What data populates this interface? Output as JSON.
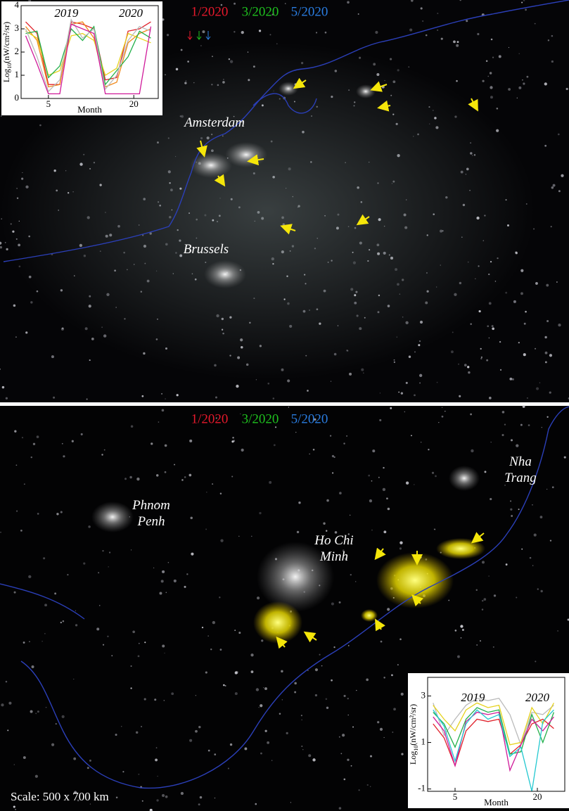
{
  "panels": [
    {
      "legend": [
        {
          "label": "1/2020",
          "color": "#e8192c"
        },
        {
          "label": "3/2020",
          "color": "#1fc21f"
        },
        {
          "label": "5/2020",
          "color": "#2a7de1"
        }
      ],
      "cities": [
        [
          "Amsterdam"
        ],
        [
          "Brussels"
        ]
      ],
      "inset": {
        "type": "line",
        "labels": [
          "2019",
          "2020"
        ],
        "ylabel": [
          "Log",
          "10",
          "(nW/cm²/sr)"
        ],
        "xlabel": "Month",
        "x": [
          1,
          3,
          5,
          7,
          9,
          11,
          13,
          15,
          17,
          19,
          21,
          23
        ],
        "xlim": [
          0.2,
          24.3
        ],
        "ylim": [
          0,
          4
        ],
        "xticks": [
          5,
          20
        ],
        "yticks": [
          0,
          1,
          2,
          3,
          4
        ],
        "series": [
          {
            "color": "#e0202a",
            "values": [
              3.3,
              2.8,
              0.6,
              0.6,
              3.3,
              3.2,
              3.0,
              0.8,
              0.9,
              2.9,
              3.0,
              3.3
            ]
          },
          {
            "color": "#f08a1c",
            "values": [
              3.1,
              2.5,
              0.5,
              0.6,
              3.2,
              3.3,
              2.6,
              0.5,
              0.7,
              2.4,
              2.8,
              3.0
            ]
          },
          {
            "color": "#e6d21c",
            "values": [
              2.9,
              2.6,
              1.0,
              1.2,
              2.7,
              2.8,
              2.5,
              1.0,
              1.3,
              2.8,
              2.6,
              2.4
            ]
          },
          {
            "color": "#22b04a",
            "values": [
              2.8,
              2.9,
              0.9,
              1.4,
              3.0,
              2.5,
              3.1,
              0.6,
              1.2,
              1.8,
              2.9,
              2.6
            ]
          },
          {
            "color": "#bbbbbb",
            "values": [
              3.0,
              1.8,
              0.3,
              0.8,
              3.4,
              2.6,
              3.0,
              0.4,
              1.0,
              2.5,
              3.1,
              2.9
            ]
          },
          {
            "color": "#d01a9a",
            "values": [
              2.7,
              1.5,
              0.2,
              0.2,
              3.2,
              3.0,
              2.8,
              0.2,
              0.2,
              0.2,
              0.2,
              3.1
            ]
          }
        ]
      }
    },
    {
      "legend": [
        {
          "label": "1/2020",
          "color": "#e8192c"
        },
        {
          "label": "3/2020",
          "color": "#1fc21f"
        },
        {
          "label": "5/2020",
          "color": "#2a7de1"
        }
      ],
      "cities": [
        [
          "Phnom",
          "Penh"
        ],
        [
          "Ho Chi",
          "Minh"
        ],
        [
          "Nha",
          "Trang"
        ]
      ],
      "scale": "Scale: 500 x 700 km",
      "inset": {
        "type": "line",
        "labels": [
          "2019",
          "2020"
        ],
        "ylabel": [
          "Log",
          "10",
          "(nW/cm²/sr)"
        ],
        "xlabel": "Month",
        "x": [
          1,
          3,
          5,
          7,
          9,
          11,
          13,
          15,
          17,
          19,
          21,
          23
        ],
        "xlim": [
          0,
          25
        ],
        "ylim": [
          -1.1,
          3.8
        ],
        "xticks": [
          5,
          20
        ],
        "yticks": [
          -1,
          1,
          3
        ],
        "series": [
          {
            "color": "#bbbbbb",
            "values": [
              2.7,
              1.3,
              2.0,
              2.6,
              2.9,
              2.8,
              2.9,
              2.2,
              0.9,
              2.3,
              2.2,
              2.6
            ]
          },
          {
            "color": "#e6d21c",
            "values": [
              2.6,
              2.0,
              1.5,
              2.4,
              2.7,
              2.5,
              2.6,
              0.9,
              1.0,
              2.5,
              1.8,
              2.7
            ]
          },
          {
            "color": "#e0202a",
            "values": [
              1.8,
              1.2,
              0.0,
              1.5,
              2.0,
              1.9,
              2.0,
              0.5,
              0.9,
              1.8,
              2.0,
              1.6
            ]
          },
          {
            "color": "#22b04a",
            "values": [
              2.3,
              1.8,
              0.8,
              2.0,
              2.5,
              2.3,
              2.4,
              0.5,
              0.6,
              2.2,
              1.0,
              2.3
            ]
          },
          {
            "color": "#d01a9a",
            "values": [
              2.1,
              1.5,
              0.0,
              1.9,
              2.3,
              2.2,
              2.3,
              -0.2,
              0.9,
              2.0,
              1.5,
              2.1
            ]
          },
          {
            "color": "#22c8d0",
            "values": [
              2.4,
              1.7,
              0.2,
              1.8,
              2.4,
              2.0,
              2.2,
              0.4,
              0.8,
              -1.1,
              1.9,
              2.4
            ]
          }
        ]
      }
    }
  ]
}
